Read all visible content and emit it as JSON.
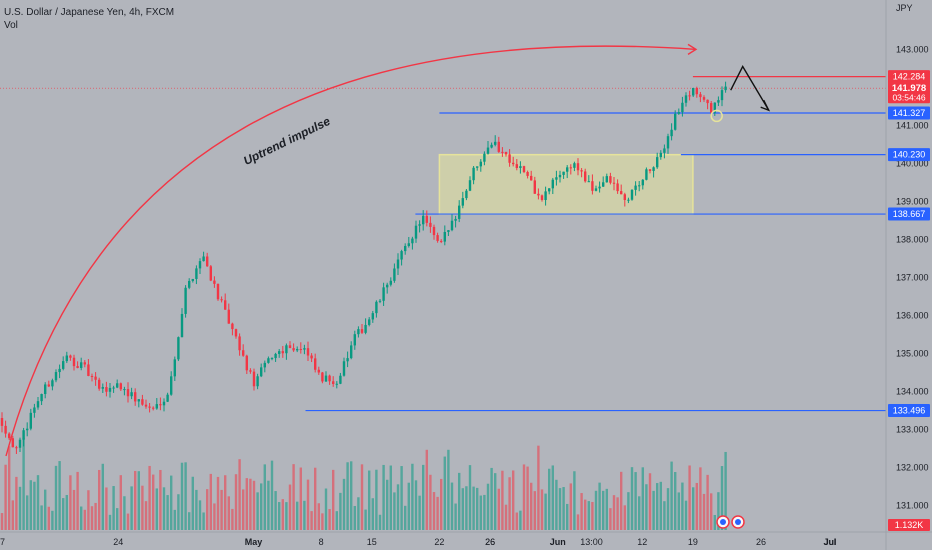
{
  "header": {
    "symbol_line": "U.S. Dollar / Japanese Yen, 4h, FXCM",
    "volume_label": "Vol",
    "currency": "JPY"
  },
  "chart_data": {
    "type": "candlestick",
    "y_axis": {
      "ticks": [
        "143.000",
        "142.000",
        "141.000",
        "140.000",
        "139.000",
        "138.000",
        "137.000",
        "136.000",
        "135.000",
        "134.000",
        "133.000",
        "132.000",
        "131.000"
      ],
      "ylim": [
        130.3,
        144.3
      ]
    },
    "x_axis": {
      "ticks": [
        "17",
        "24",
        "May",
        "8",
        "15",
        "22",
        "26",
        "Jun",
        "13:00",
        "12",
        "19",
        "26",
        "Jul"
      ]
    },
    "price_path": [
      {
        "t": "17",
        "v": 133.3
      },
      {
        "t": "",
        "v": 132.4
      },
      {
        "t": "",
        "v": 133.6
      },
      {
        "t": "",
        "v": 134.3
      },
      {
        "t": "",
        "v": 134.9
      },
      {
        "t": "",
        "v": 134.6
      },
      {
        "t": "",
        "v": 134.0
      },
      {
        "t": "24",
        "v": 134.2
      },
      {
        "t": "",
        "v": 133.8
      },
      {
        "t": "",
        "v": 133.5
      },
      {
        "t": "",
        "v": 134.0
      },
      {
        "t": "",
        "v": 136.7
      },
      {
        "t": "",
        "v": 137.6
      },
      {
        "t": "",
        "v": 136.4
      },
      {
        "t": "",
        "v": 135.3
      },
      {
        "t": "May",
        "v": 134.2
      },
      {
        "t": "",
        "v": 134.9
      },
      {
        "t": "",
        "v": 135.2
      },
      {
        "t": "",
        "v": 135.1
      },
      {
        "t": "8",
        "v": 134.3
      },
      {
        "t": "",
        "v": 134.3
      },
      {
        "t": "",
        "v": 135.4
      },
      {
        "t": "15",
        "v": 136.0
      },
      {
        "t": "",
        "v": 136.9
      },
      {
        "t": "",
        "v": 137.8
      },
      {
        "t": "",
        "v": 138.6
      },
      {
        "t": "22",
        "v": 137.8
      },
      {
        "t": "",
        "v": 138.7
      },
      {
        "t": "",
        "v": 139.8
      },
      {
        "t": "26",
        "v": 140.6
      },
      {
        "t": "",
        "v": 140.2
      },
      {
        "t": "",
        "v": 139.8
      },
      {
        "t": "",
        "v": 139.0
      },
      {
        "t": "Jun",
        "v": 139.7
      },
      {
        "t": "",
        "v": 140.0
      },
      {
        "t": "13:00",
        "v": 139.3
      },
      {
        "t": "",
        "v": 139.6
      },
      {
        "t": "",
        "v": 139.0
      },
      {
        "t": "12",
        "v": 139.6
      },
      {
        "t": "",
        "v": 140.1
      },
      {
        "t": "",
        "v": 141.3
      },
      {
        "t": "19",
        "v": 142.0
      },
      {
        "t": "",
        "v": 141.4
      },
      {
        "t": "",
        "v": 141.98
      }
    ],
    "levels": [
      {
        "value": 142.284,
        "label": "142.284",
        "color": "#f23645"
      },
      {
        "value": 141.327,
        "label": "141.327",
        "color": "#2962ff"
      },
      {
        "value": 140.23,
        "label": "140.230",
        "color": "#2962ff"
      },
      {
        "value": 138.667,
        "label": "138.667",
        "color": "#2962ff"
      },
      {
        "value": 133.496,
        "label": "133.496",
        "color": "#2962ff"
      }
    ],
    "current_price": {
      "value": 141.978,
      "label": "141.978",
      "countdown": "03:54:46",
      "color": "#f23645"
    },
    "volume_badge": {
      "label": "1.132K",
      "color": "#f23645"
    },
    "range_box": {
      "from": "22",
      "to": "19",
      "low": 138.667,
      "high": 140.23,
      "color": "#e6e39b"
    },
    "annotations": [
      {
        "text": "Uptrend impulse",
        "color": "#1c1f26"
      }
    ],
    "colors": {
      "up": "#089981",
      "down": "#f23645",
      "arrow_red": "#f23645",
      "arrow_black": "#111111"
    }
  }
}
